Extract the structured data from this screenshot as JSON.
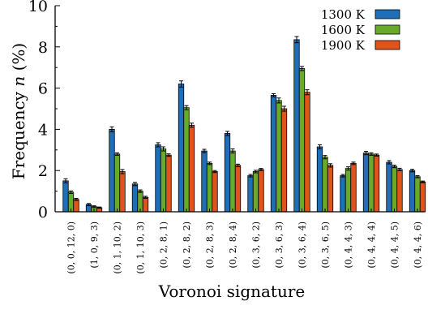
{
  "chart_data": {
    "type": "bar",
    "title": "",
    "xlabel": "Voronoi signature",
    "ylabel_prefix": "Frequency ",
    "ylabel_var": "n",
    "ylabel_suffix": " (%)",
    "ylim": [
      0,
      10
    ],
    "yticks": [
      0,
      2,
      4,
      6,
      8,
      10
    ],
    "grid": false,
    "legend_position": "top-right",
    "error_bars": true,
    "categories": [
      "(0, 0, 12, 0)",
      "(1, 0, 9, 3)",
      "(0, 1, 10, 2)",
      "(0, 1, 10, 3)",
      "(0, 2, 8, 1)",
      "(0, 2, 8, 2)",
      "(0, 2, 8, 3)",
      "(0, 2, 8, 4)",
      "(0, 3, 6, 2)",
      "(0, 3, 6, 3)",
      "(0, 3, 6, 4)",
      "(0, 3, 6, 5)",
      "(0, 4, 4, 3)",
      "(0, 4, 4, 4)",
      "(0, 4, 4, 5)",
      "(0, 4, 4, 6)"
    ],
    "series": [
      {
        "name": "1300 K",
        "color": "#1f6fb8",
        "values": [
          1.5,
          0.35,
          4.0,
          1.35,
          3.25,
          6.2,
          2.95,
          3.8,
          1.75,
          5.65,
          8.35,
          3.15,
          1.75,
          2.85,
          2.4,
          2.0
        ],
        "errors": [
          0.1,
          0.05,
          0.12,
          0.08,
          0.1,
          0.15,
          0.08,
          0.1,
          0.06,
          0.08,
          0.15,
          0.1,
          0.06,
          0.08,
          0.08,
          0.06
        ]
      },
      {
        "name": "1600 K",
        "color": "#6aaa2b",
        "values": [
          0.95,
          0.25,
          2.8,
          1.0,
          3.05,
          5.05,
          2.35,
          2.95,
          1.95,
          5.4,
          6.95,
          2.65,
          2.1,
          2.8,
          2.2,
          1.7
        ],
        "errors": [
          0.06,
          0.04,
          0.06,
          0.06,
          0.1,
          0.1,
          0.06,
          0.1,
          0.06,
          0.12,
          0.1,
          0.08,
          0.08,
          0.06,
          0.06,
          0.05
        ]
      },
      {
        "name": "1900 K",
        "color": "#e0531c",
        "values": [
          0.6,
          0.2,
          1.95,
          0.7,
          2.75,
          4.2,
          1.95,
          2.25,
          2.05,
          5.0,
          5.8,
          2.25,
          2.35,
          2.75,
          2.05,
          1.45
        ],
        "errors": [
          0.05,
          0.03,
          0.1,
          0.05,
          0.06,
          0.1,
          0.05,
          0.06,
          0.05,
          0.12,
          0.12,
          0.08,
          0.06,
          0.05,
          0.06,
          0.04
        ]
      }
    ]
  }
}
